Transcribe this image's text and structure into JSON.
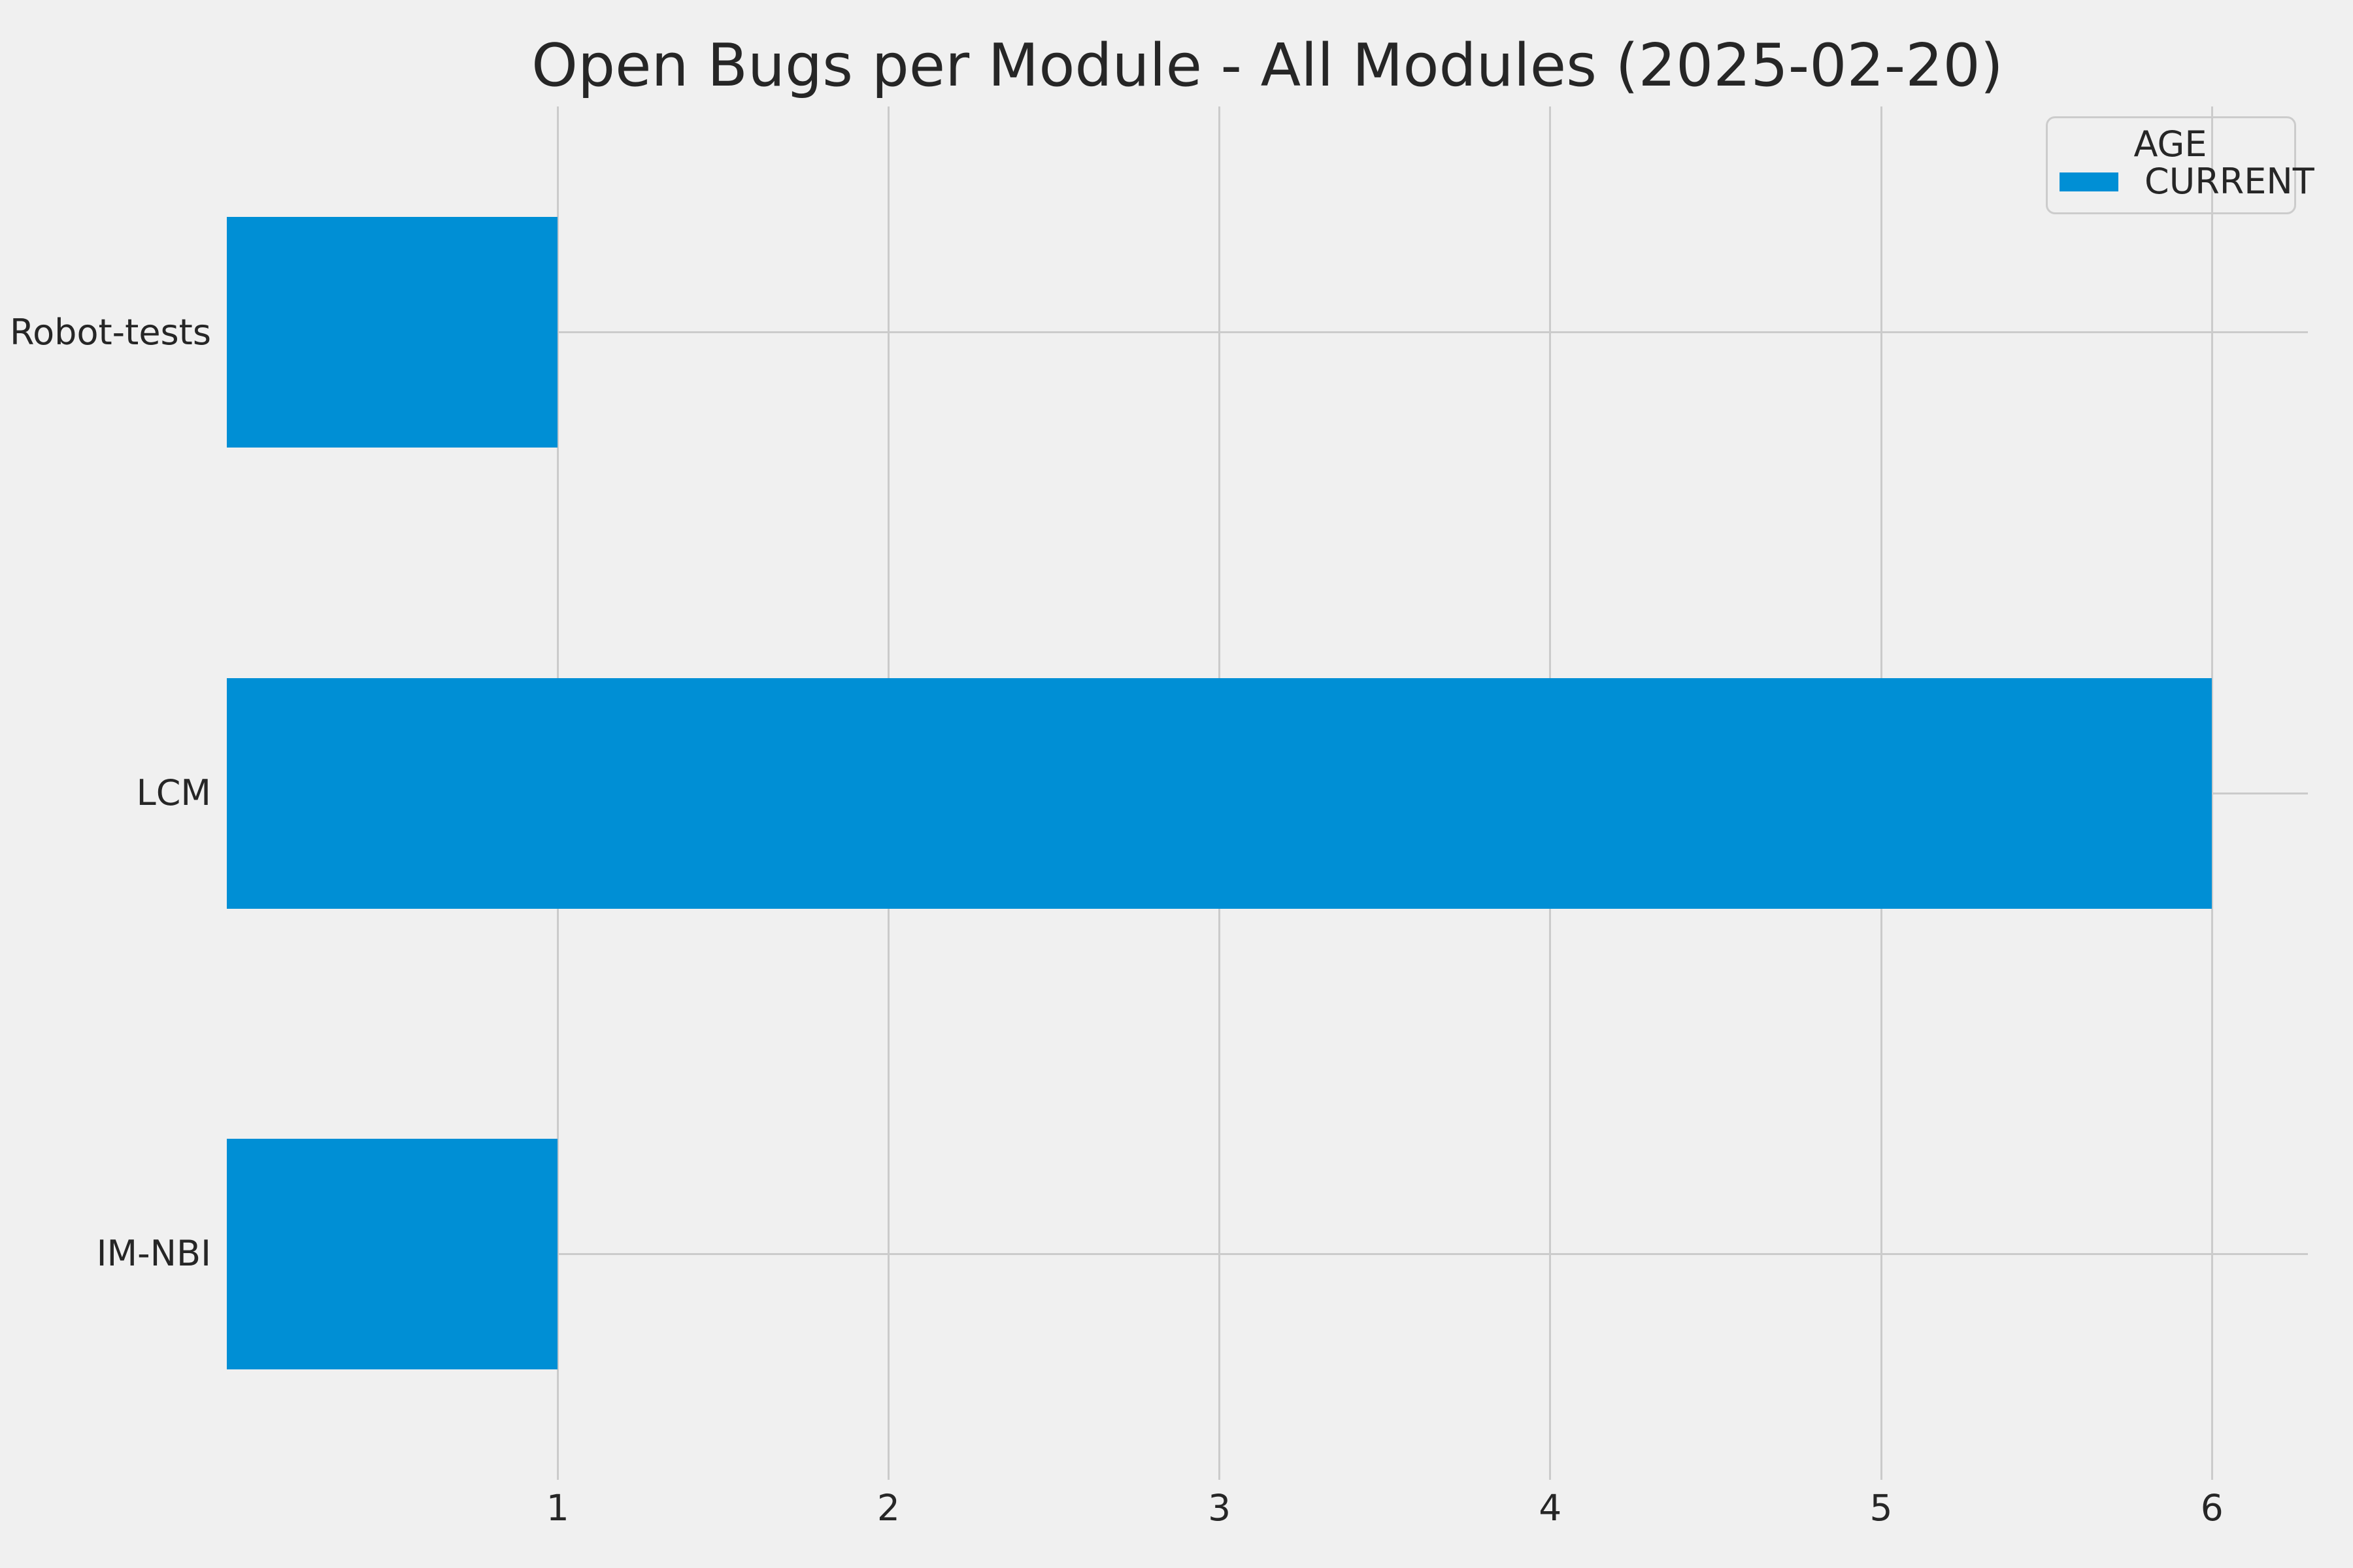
{
  "title": "Open Bugs per Module - All Modules (2025-02-20)",
  "legend": {
    "title": "AGE",
    "entries": [
      {
        "label": "CURRENT",
        "color": "#008fd5"
      }
    ],
    "position": "upper right"
  },
  "colors": {
    "background": "#f0f0f0",
    "grid": "#cbcbcb",
    "bar": "#008fd5",
    "text": "#262626",
    "legend_border": "#cccccc"
  },
  "chart_data": {
    "type": "bar",
    "orientation": "horizontal",
    "title": "Open Bugs per Module - All Modules (2025-02-20)",
    "categories": [
      "Robot-tests",
      "LCM",
      "IM-NBI"
    ],
    "values": [
      1,
      6,
      1
    ],
    "series": [
      {
        "name": "CURRENT",
        "color": "#008fd5",
        "values": [
          1,
          6,
          1
        ]
      }
    ],
    "xlabel": "",
    "ylabel": "",
    "xticks": [
      1,
      2,
      3,
      4,
      5,
      6
    ],
    "xlim": [
      0,
      6.29
    ],
    "ylim": [
      -0.49,
      2.49
    ],
    "bar_height_fraction": 0.5,
    "grid": true,
    "legend_position": "upper right"
  }
}
